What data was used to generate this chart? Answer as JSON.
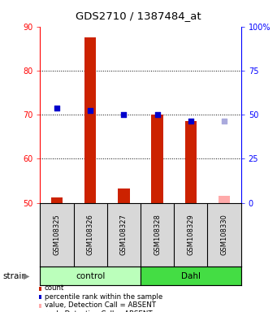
{
  "title": "GDS2710 / 1387484_at",
  "samples": [
    "GSM108325",
    "GSM108326",
    "GSM108327",
    "GSM108328",
    "GSM108329",
    "GSM108330"
  ],
  "groups": {
    "control": [
      0,
      1,
      2
    ],
    "Dahl": [
      3,
      4,
      5
    ]
  },
  "bar_values": [
    51.2,
    87.5,
    53.2,
    70.0,
    68.5,
    null
  ],
  "absent_bar_values": [
    null,
    null,
    null,
    null,
    null,
    51.5
  ],
  "absent_bar_color": "#ffaaaa",
  "rank_dots": [
    71.5,
    71.0,
    70.0,
    70.0,
    68.5,
    null
  ],
  "rank_dot_color": "#0000cc",
  "absent_rank_dots": [
    null,
    null,
    null,
    null,
    null,
    68.5
  ],
  "absent_rank_dot_color": "#aaaadd",
  "bar_color": "#cc2200",
  "ylim_left": [
    50,
    90
  ],
  "ylim_right": [
    0,
    100
  ],
  "yticks_left": [
    50,
    60,
    70,
    80,
    90
  ],
  "ytick_labels_left": [
    "50",
    "60",
    "70",
    "80",
    "90"
  ],
  "yticks_right": [
    0,
    25,
    50,
    75,
    100
  ],
  "ytick_labels_right": [
    "0",
    "25",
    "50",
    "75",
    "100%"
  ],
  "dotted_lines": [
    60,
    70,
    80
  ],
  "group_colors": {
    "control": "#bbffbb",
    "Dahl": "#44dd44"
  },
  "strain_label": "strain",
  "legend": [
    {
      "label": "count",
      "color": "#cc2200"
    },
    {
      "label": "percentile rank within the sample",
      "color": "#0000cc"
    },
    {
      "label": "value, Detection Call = ABSENT",
      "color": "#ffaaaa"
    },
    {
      "label": "rank, Detection Call = ABSENT",
      "color": "#aaaadd"
    }
  ],
  "bar_bottom": 50,
  "bar_width": 0.35,
  "dot_size": 18,
  "background_color": "#ffffff",
  "plot_bg_color": "#ffffff",
  "sample_box_color": "#d8d8d8"
}
